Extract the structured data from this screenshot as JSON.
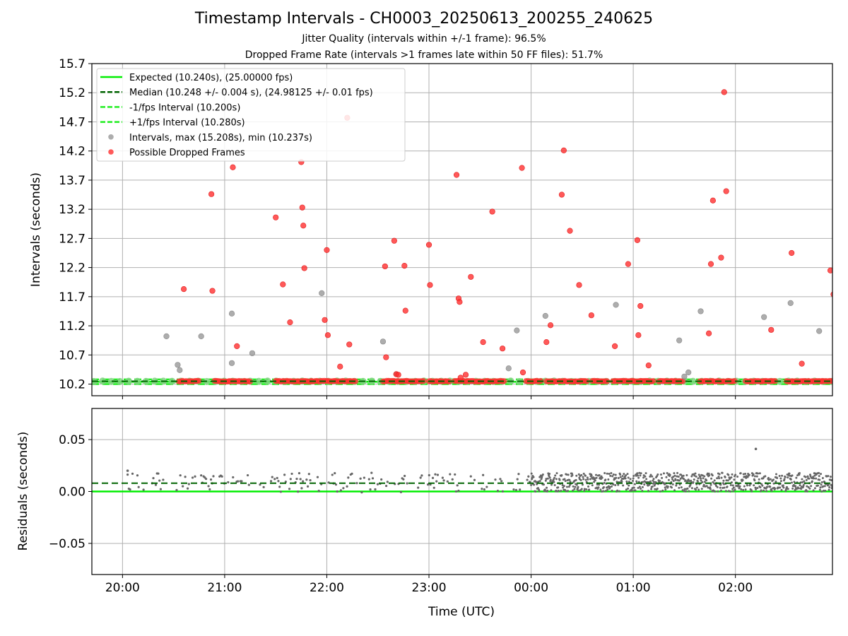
{
  "figure": {
    "title": "Timestamp Intervals - CH0003_20250613_200255_240625",
    "subtitle_1": "Jitter Quality (intervals within +/-1 frame): 96.5%",
    "subtitle_2": "Dropped Frame Rate (intervals >1 frames late within 50 FF files): 51.7%"
  },
  "colors": {
    "expected": "#00ee00",
    "median": "#006400",
    "fps_band": "#22ee22",
    "intervals": "#999999",
    "dropped": "#ff3030",
    "residuals": "#666666",
    "grid": "#b0b0b0"
  },
  "chart_data": [
    {
      "type": "scatter",
      "id": "intervals",
      "xlabel": "",
      "ylabel": "Intervals (seconds)",
      "ylim": [
        10.0,
        15.7
      ],
      "yticks": [
        "10.2",
        "10.7",
        "11.2",
        "11.7",
        "12.2",
        "12.7",
        "13.2",
        "13.7",
        "14.2",
        "14.7",
        "15.2",
        "15.7"
      ],
      "xlim_hours_utc": [
        19.7,
        26.95
      ],
      "grid": true,
      "legend_position": "top-left",
      "legend": [
        {
          "label": "Expected (10.240s), (25.00000 fps)",
          "style": "solid",
          "color": "#00ee00"
        },
        {
          "label": "Median (10.248 +/- 0.004 s), (24.98125 +/- 0.01 fps)",
          "style": "dashed",
          "color": "#006400"
        },
        {
          "label": "-1/fps Interval (10.200s)",
          "style": "dashed",
          "color": "#22ee22"
        },
        {
          "label": "+1/fps Interval (10.280s)",
          "style": "dashed",
          "color": "#22ee22"
        },
        {
          "label": "Intervals, max (15.208s), min (10.237s)",
          "style": "marker",
          "color": "#999999"
        },
        {
          "label": "Possible Dropped Frames",
          "style": "marker",
          "color": "#ff3030"
        }
      ],
      "lines": {
        "expected": 10.24,
        "median": 10.248,
        "minus_fps": 10.2,
        "plus_fps": 10.28
      },
      "baseline_cluster_x": [
        [
          20.55,
          20.75
        ],
        [
          20.9,
          21.05
        ],
        [
          21.05,
          21.25
        ],
        [
          21.5,
          21.85
        ],
        [
          21.85,
          22.3
        ],
        [
          22.55,
          22.95
        ],
        [
          23.0,
          23.2
        ],
        [
          23.25,
          23.75
        ],
        [
          23.95,
          24.1
        ],
        [
          24.15,
          24.55
        ],
        [
          24.6,
          24.75
        ],
        [
          24.8,
          25.2
        ],
        [
          25.25,
          25.5
        ],
        [
          25.65,
          26.0
        ],
        [
          26.1,
          26.4
        ],
        [
          26.5,
          26.85
        ],
        [
          26.85,
          26.95
        ]
      ],
      "gray_points": [
        [
          20.43,
          11.02
        ],
        [
          20.54,
          10.53
        ],
        [
          20.56,
          10.44
        ],
        [
          20.77,
          11.02
        ],
        [
          21.07,
          11.41
        ],
        [
          21.07,
          10.56
        ],
        [
          21.27,
          10.73
        ],
        [
          21.95,
          11.76
        ],
        [
          22.55,
          10.93
        ],
        [
          22.68,
          10.37
        ],
        [
          23.78,
          10.47
        ],
        [
          23.86,
          11.12
        ],
        [
          24.14,
          11.37
        ],
        [
          24.83,
          11.56
        ],
        [
          25.45,
          10.95
        ],
        [
          25.5,
          10.33
        ],
        [
          25.54,
          10.4
        ],
        [
          25.66,
          11.45
        ],
        [
          26.28,
          11.35
        ],
        [
          26.54,
          11.59
        ],
        [
          26.82,
          11.11
        ]
      ],
      "red_points": [
        [
          20.6,
          11.83
        ],
        [
          20.87,
          13.46
        ],
        [
          20.88,
          11.8
        ],
        [
          21.08,
          13.92
        ],
        [
          21.12,
          10.85
        ],
        [
          21.5,
          13.06
        ],
        [
          21.57,
          11.91
        ],
        [
          21.64,
          11.26
        ],
        [
          21.75,
          14.01
        ],
        [
          21.76,
          13.23
        ],
        [
          21.77,
          12.92
        ],
        [
          21.78,
          12.19
        ],
        [
          21.98,
          11.3
        ],
        [
          22.0,
          12.5
        ],
        [
          22.01,
          11.04
        ],
        [
          22.13,
          10.5
        ],
        [
          22.2,
          14.77
        ],
        [
          22.22,
          10.88
        ],
        [
          22.57,
          12.22
        ],
        [
          22.58,
          10.66
        ],
        [
          22.66,
          12.66
        ],
        [
          22.68,
          10.37
        ],
        [
          22.7,
          10.36
        ],
        [
          22.76,
          12.23
        ],
        [
          22.77,
          11.46
        ],
        [
          23.0,
          12.59
        ],
        [
          23.01,
          11.9
        ],
        [
          23.27,
          13.79
        ],
        [
          23.29,
          11.67
        ],
        [
          23.3,
          11.61
        ],
        [
          23.31,
          10.31
        ],
        [
          23.36,
          10.36
        ],
        [
          23.41,
          12.04
        ],
        [
          23.53,
          10.92
        ],
        [
          23.62,
          13.16
        ],
        [
          23.72,
          10.81
        ],
        [
          23.91,
          13.91
        ],
        [
          23.92,
          10.4
        ],
        [
          24.15,
          10.92
        ],
        [
          24.19,
          11.21
        ],
        [
          24.3,
          13.45
        ],
        [
          24.32,
          14.21
        ],
        [
          24.38,
          12.83
        ],
        [
          24.47,
          11.9
        ],
        [
          24.59,
          11.38
        ],
        [
          24.82,
          10.85
        ],
        [
          24.95,
          12.26
        ],
        [
          25.04,
          12.67
        ],
        [
          25.05,
          11.04
        ],
        [
          25.07,
          11.54
        ],
        [
          25.15,
          10.52
        ],
        [
          25.74,
          11.07
        ],
        [
          25.76,
          12.26
        ],
        [
          25.78,
          13.35
        ],
        [
          25.86,
          12.37
        ],
        [
          25.89,
          15.21
        ],
        [
          25.91,
          13.51
        ],
        [
          26.35,
          11.13
        ],
        [
          26.55,
          12.45
        ],
        [
          26.65,
          10.55
        ],
        [
          26.93,
          12.15
        ],
        [
          26.96,
          11.74
        ]
      ]
    },
    {
      "type": "scatter",
      "id": "residuals",
      "xlabel": "Time (UTC)",
      "ylabel": "Residuals (seconds)",
      "ylim": [
        -0.08,
        0.08
      ],
      "yticks": [
        "0.05",
        "0.00",
        "−0.05"
      ],
      "xticks": [
        "20:00",
        "21:00",
        "22:00",
        "23:00",
        "00:00",
        "01:00",
        "02:00"
      ],
      "xlim_hours_utc": [
        19.7,
        26.95
      ],
      "grid": true,
      "lines": {
        "expected": 0.0,
        "median": 0.008
      },
      "points_summary": {
        "range_early": [
          -0.005,
          0.02
        ],
        "range_late": [
          0.0,
          0.018
        ],
        "dense_after_hour_utc": 24.0
      },
      "outliers": [
        [
          20.05,
          0.02
        ],
        [
          26.2,
          0.041
        ]
      ]
    }
  ]
}
